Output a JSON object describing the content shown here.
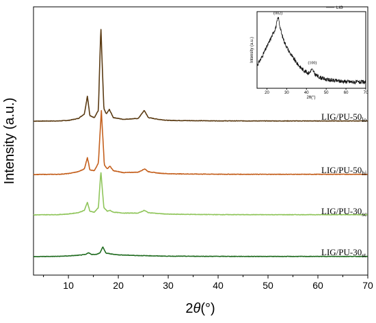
{
  "chart_data": {
    "type": "line",
    "xlabel": "2θ(°)",
    "xlabel_theta": "θ",
    "xlabel_prefix": "2",
    "xlabel_unit": "(°)",
    "ylabel": "Intensity (a.u.)",
    "xlim": [
      3,
      70
    ],
    "xticks": [
      "10",
      "20",
      "30",
      "40",
      "50",
      "60",
      "70"
    ],
    "y_ticks_shown": false,
    "grid": false,
    "series": [
      {
        "label": "LIG/PU-50",
        "label_sub": "lo",
        "color": "#5a3a12",
        "baseline": 0.0,
        "noise_level": "low",
        "points": [
          [
            3,
            0
          ],
          [
            8,
            0.2
          ],
          [
            10,
            0.8
          ],
          [
            12,
            3
          ],
          [
            13.2,
            8
          ],
          [
            13.8,
            28
          ],
          [
            14.3,
            6
          ],
          [
            15.2,
            4
          ],
          [
            16,
            12
          ],
          [
            16.5,
            105
          ],
          [
            17.1,
            14
          ],
          [
            17.6,
            8
          ],
          [
            18.2,
            13
          ],
          [
            19,
            4
          ],
          [
            21,
            2
          ],
          [
            24,
            3
          ],
          [
            25.2,
            12
          ],
          [
            26,
            4
          ],
          [
            28,
            2
          ],
          [
            30,
            0.8
          ],
          [
            35,
            0.5
          ],
          [
            40,
            0.3
          ],
          [
            50,
            0.2
          ],
          [
            60,
            0.2
          ],
          [
            70,
            0.2
          ]
        ]
      },
      {
        "label": "LIG/PU-50",
        "label_sub": "hi",
        "color": "#c45f1c",
        "baseline": 0.0,
        "noise_level": "low",
        "points": [
          [
            3,
            0
          ],
          [
            8,
            0.2
          ],
          [
            10,
            1
          ],
          [
            12,
            3
          ],
          [
            13.2,
            6
          ],
          [
            13.8,
            18
          ],
          [
            14.3,
            5
          ],
          [
            15.2,
            4
          ],
          [
            16,
            12
          ],
          [
            16.6,
            68
          ],
          [
            17.2,
            10
          ],
          [
            17.8,
            6
          ],
          [
            18.3,
            9
          ],
          [
            19,
            4
          ],
          [
            21,
            2
          ],
          [
            24,
            2.5
          ],
          [
            25.3,
            6
          ],
          [
            26,
            3
          ],
          [
            28,
            1.5
          ],
          [
            30,
            0.8
          ],
          [
            35,
            0.5
          ],
          [
            40,
            0.3
          ],
          [
            50,
            0.2
          ],
          [
            60,
            0.2
          ],
          [
            70,
            0.2
          ]
        ]
      },
      {
        "label": "LIG/PU-30",
        "label_sub": "sc",
        "color": "#8fc55a",
        "baseline": 0.0,
        "noise_level": "low",
        "points": [
          [
            3,
            0
          ],
          [
            8,
            0.3
          ],
          [
            10,
            1
          ],
          [
            12,
            2.5
          ],
          [
            13.2,
            5
          ],
          [
            13.8,
            14
          ],
          [
            14.3,
            4
          ],
          [
            15.2,
            3
          ],
          [
            16,
            8
          ],
          [
            16.5,
            48
          ],
          [
            17.1,
            8
          ],
          [
            17.8,
            4
          ],
          [
            18.3,
            5
          ],
          [
            19,
            3
          ],
          [
            21,
            2
          ],
          [
            24,
            2
          ],
          [
            25.2,
            5
          ],
          [
            26,
            2.5
          ],
          [
            28,
            1.5
          ],
          [
            30,
            0.8
          ],
          [
            35,
            0.5
          ],
          [
            40,
            0.3
          ],
          [
            50,
            0.2
          ],
          [
            60,
            0.2
          ],
          [
            70,
            0.2
          ]
        ]
      },
      {
        "label": "LIG/PU-30",
        "label_sub": "st",
        "color": "#1f6b1f",
        "baseline": 0.0,
        "noise_level": "low",
        "points": [
          [
            3,
            0
          ],
          [
            8,
            0.3
          ],
          [
            10,
            0.8
          ],
          [
            12,
            1.5
          ],
          [
            13.5,
            2.5
          ],
          [
            14,
            4.5
          ],
          [
            14.6,
            2.5
          ],
          [
            15.5,
            2.5
          ],
          [
            16.3,
            4
          ],
          [
            16.9,
            11
          ],
          [
            17.5,
            4
          ],
          [
            18.5,
            3
          ],
          [
            20,
            2
          ],
          [
            24,
            1.2
          ],
          [
            26,
            1
          ],
          [
            28,
            0.7
          ],
          [
            30,
            0.5
          ],
          [
            40,
            0.3
          ],
          [
            50,
            0.2
          ],
          [
            60,
            0.2
          ],
          [
            70,
            0.2
          ]
        ]
      }
    ],
    "inset": {
      "legend": "LIG",
      "ylabel": "Intensity (a.u.)",
      "xlabel": "2θ(°)",
      "xlim": [
        15,
        70
      ],
      "xticks": [
        "20",
        "30",
        "40",
        "50",
        "60",
        "70"
      ],
      "color": "#111111",
      "annotations": [
        {
          "text": "(002)",
          "x": 25.6,
          "y": 1.0
        },
        {
          "text": "(100)",
          "x": 43.0,
          "y": 0.26
        }
      ],
      "points": [
        [
          15,
          0.28
        ],
        [
          17,
          0.38
        ],
        [
          19,
          0.5
        ],
        [
          21,
          0.62
        ],
        [
          23,
          0.75
        ],
        [
          24.5,
          0.85
        ],
        [
          25.3,
          0.95
        ],
        [
          25.8,
          1.0
        ],
        [
          26.3,
          0.9
        ],
        [
          27.5,
          0.74
        ],
        [
          29,
          0.62
        ],
        [
          31,
          0.5
        ],
        [
          33,
          0.4
        ],
        [
          35,
          0.32
        ],
        [
          37,
          0.25
        ],
        [
          39,
          0.2
        ],
        [
          40.5,
          0.17
        ],
        [
          41.5,
          0.17
        ],
        [
          42.6,
          0.22
        ],
        [
          43.3,
          0.2
        ],
        [
          44.5,
          0.14
        ],
        [
          47,
          0.1
        ],
        [
          50,
          0.07
        ],
        [
          55,
          0.05
        ],
        [
          60,
          0.04
        ],
        [
          65,
          0.03
        ],
        [
          70,
          0.03
        ]
      ]
    }
  }
}
